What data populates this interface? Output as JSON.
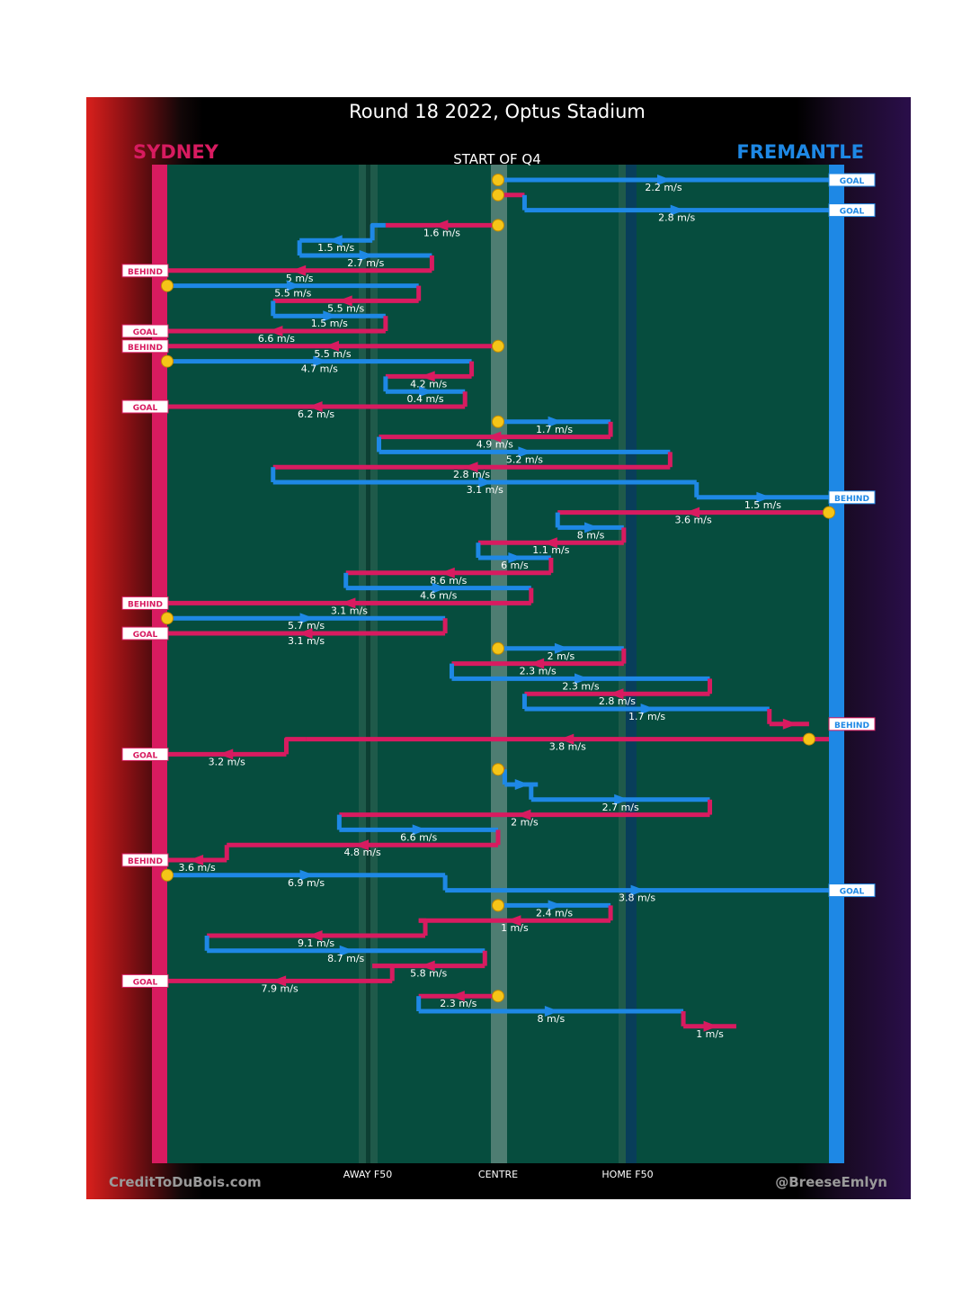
{
  "chart_data": {
    "type": "line",
    "title": "Round 18 2022, Optus Stadium",
    "subtitle": "START OF Q4",
    "home_team": "SYDNEY",
    "away_team": "FREMANTLE",
    "x_axis_labels": [
      "AWAY F50",
      "CENTRE",
      "HOME F50"
    ],
    "credit_left": "CreditToDuBois.com",
    "credit_right": "@BreeseEmlyn",
    "colors": {
      "sydney": "#d81b60",
      "fremantle": "#1e88e5",
      "field": "#064d3e",
      "marker": "#f5c518"
    },
    "x_scale_note": "x positions: 0 = Sydney goal line, 100 = Fremantle goal line",
    "chains": [
      {
        "start": 50,
        "outcome": "GOAL",
        "segments": [
          {
            "team": "FRE",
            "from": 50,
            "to": 100,
            "speed": "2.2 m/s"
          }
        ]
      },
      {
        "start": 50,
        "outcome": "GOAL",
        "segments": [
          {
            "team": "SYD",
            "from": 50,
            "to": 54,
            "speed": ""
          },
          {
            "team": "FRE",
            "from": 54,
            "to": 100,
            "speed": "2.8 m/s"
          }
        ]
      },
      {
        "start": 50,
        "outcome": "BEHIND",
        "segments": [
          {
            "team": "SYD",
            "from": 50,
            "to": 33,
            "speed": "1.6 m/s"
          },
          {
            "team": "FRE",
            "from": 31,
            "to": 20,
            "speed": "1.5 m/s"
          },
          {
            "team": "FRE",
            "from": 20,
            "to": 40,
            "speed": "2.7 m/s"
          },
          {
            "team": "SYD",
            "from": 40,
            "to": 0,
            "speed": "5 m/s"
          }
        ]
      },
      {
        "start": 0,
        "outcome": "GOAL",
        "segments": [
          {
            "team": "FRE",
            "from": 0,
            "to": 38,
            "speed": "5.5 m/s"
          },
          {
            "team": "SYD",
            "from": 38,
            "to": 16,
            "speed": "5.5 m/s"
          },
          {
            "team": "FRE",
            "from": 16,
            "to": 33,
            "speed": "1.5 m/s"
          },
          {
            "team": "SYD",
            "from": 33,
            "to": 0,
            "speed": "6.6 m/s"
          }
        ]
      },
      {
        "start": 50,
        "outcome": "BEHIND",
        "segments": [
          {
            "team": "SYD",
            "from": 50,
            "to": 0,
            "speed": "5.5 m/s"
          }
        ]
      },
      {
        "start": 0,
        "outcome": "GOAL",
        "segments": [
          {
            "team": "FRE",
            "from": 0,
            "to": 46,
            "speed": "4.7 m/s"
          },
          {
            "team": "SYD",
            "from": 46,
            "to": 33,
            "speed": "4.2 m/s"
          },
          {
            "team": "FRE",
            "from": 33,
            "to": 45,
            "speed": "0.4 m/s"
          },
          {
            "team": "SYD",
            "from": 45,
            "to": 0,
            "speed": "6.2 m/s"
          }
        ]
      },
      {
        "start": 50,
        "outcome": "BEHIND",
        "segments": [
          {
            "team": "FRE",
            "from": 50,
            "to": 67,
            "speed": "1.7 m/s"
          },
          {
            "team": "SYD",
            "from": 67,
            "to": 32,
            "speed": "4.9 m/s"
          },
          {
            "team": "FRE",
            "from": 32,
            "to": 76,
            "speed": "5.2 m/s"
          },
          {
            "team": "SYD",
            "from": 76,
            "to": 16,
            "speed": "2.8 m/s"
          },
          {
            "team": "FRE",
            "from": 16,
            "to": 80,
            "speed": "3.1 m/s"
          },
          {
            "team": "FRE",
            "from": 80,
            "to": 100,
            "speed": "1.5 m/s"
          }
        ]
      },
      {
        "start": 100,
        "outcome": "BEHIND",
        "segments": [
          {
            "team": "SYD",
            "from": 100,
            "to": 59,
            "speed": "3.6 m/s"
          },
          {
            "team": "FRE",
            "from": 59,
            "to": 69,
            "speed": "8 m/s"
          },
          {
            "team": "SYD",
            "from": 69,
            "to": 47,
            "speed": "1.1 m/s"
          },
          {
            "team": "FRE",
            "from": 47,
            "to": 58,
            "speed": "6 m/s"
          },
          {
            "team": "SYD",
            "from": 58,
            "to": 27,
            "speed": "8.6 m/s"
          },
          {
            "team": "FRE",
            "from": 27,
            "to": 55,
            "speed": "4.6 m/s"
          },
          {
            "team": "SYD",
            "from": 55,
            "to": 0,
            "speed": "3.1 m/s"
          }
        ]
      },
      {
        "start": 0,
        "outcome": "GOAL",
        "segments": [
          {
            "team": "FRE",
            "from": 0,
            "to": 42,
            "speed": "5.7 m/s"
          },
          {
            "team": "SYD",
            "from": 42,
            "to": 0,
            "speed": "3.1 m/s"
          }
        ]
      },
      {
        "start": 50,
        "outcome": "BEHIND",
        "segments": [
          {
            "team": "FRE",
            "from": 50,
            "to": 69,
            "speed": "2 m/s"
          },
          {
            "team": "SYD",
            "from": 69,
            "to": 43,
            "speed": "2.3 m/s"
          },
          {
            "team": "FRE",
            "from": 43,
            "to": 82,
            "speed": "2.3 m/s"
          },
          {
            "team": "SYD",
            "from": 82,
            "to": 54,
            "speed": "2.8 m/s"
          },
          {
            "team": "FRE",
            "from": 54,
            "to": 91,
            "speed": "1.7 m/s"
          },
          {
            "team": "SYD",
            "from": 91,
            "to": 97,
            "speed": ""
          }
        ]
      },
      {
        "start": 97,
        "outcome": "GOAL",
        "segments": [
          {
            "team": "SYD",
            "from": 100,
            "to": 21,
            "speed": "3.8 m/s"
          },
          {
            "team": "SYD",
            "from": 18,
            "to": 0,
            "speed": "3.2 m/s"
          }
        ]
      },
      {
        "start": 50,
        "outcome": "BEHIND",
        "segments": [
          {
            "team": "SYD",
            "from": 50,
            "to": 51,
            "speed": ""
          },
          {
            "team": "FRE",
            "from": 51,
            "to": 56,
            "speed": ""
          },
          {
            "team": "FRE",
            "from": 55,
            "to": 82,
            "speed": "2.7 m/s"
          },
          {
            "team": "SYD",
            "from": 82,
            "to": 26,
            "speed": "2 m/s"
          },
          {
            "team": "FRE",
            "from": 26,
            "to": 50,
            "speed": "6.6 m/s"
          },
          {
            "team": "SYD",
            "from": 50,
            "to": 9,
            "speed": "4.8 m/s"
          },
          {
            "team": "SYD",
            "from": 9,
            "to": 0,
            "speed": "3.6 m/s"
          }
        ]
      },
      {
        "start": 0,
        "outcome": "GOAL",
        "segments": [
          {
            "team": "FRE",
            "from": 0,
            "to": 42,
            "speed": "6.9 m/s"
          },
          {
            "team": "FRE",
            "from": 42,
            "to": 100,
            "speed": "3.8 m/s"
          }
        ]
      },
      {
        "start": 50,
        "outcome": "GOAL",
        "segments": [
          {
            "team": "FRE",
            "from": 50,
            "to": 67,
            "speed": "2.4 m/s"
          },
          {
            "team": "SYD",
            "from": 67,
            "to": 38,
            "speed": "1 m/s"
          },
          {
            "team": "SYD",
            "from": 39,
            "to": 6,
            "speed": "9.1 m/s"
          },
          {
            "team": "FRE",
            "from": 6,
            "to": 48,
            "speed": "8.7 m/s"
          },
          {
            "team": "SYD",
            "from": 48,
            "to": 31,
            "speed": "5.8 m/s"
          },
          {
            "team": "SYD",
            "from": 34,
            "to": 0,
            "speed": "7.9 m/s"
          }
        ]
      },
      {
        "start": 50,
        "outcome": "",
        "segments": [
          {
            "team": "SYD",
            "from": 50,
            "to": 38,
            "speed": "2.3 m/s"
          },
          {
            "team": "FRE",
            "from": 38,
            "to": 78,
            "speed": "8 m/s"
          },
          {
            "team": "SYD",
            "from": 78,
            "to": 86,
            "speed": "1 m/s"
          }
        ]
      }
    ]
  }
}
